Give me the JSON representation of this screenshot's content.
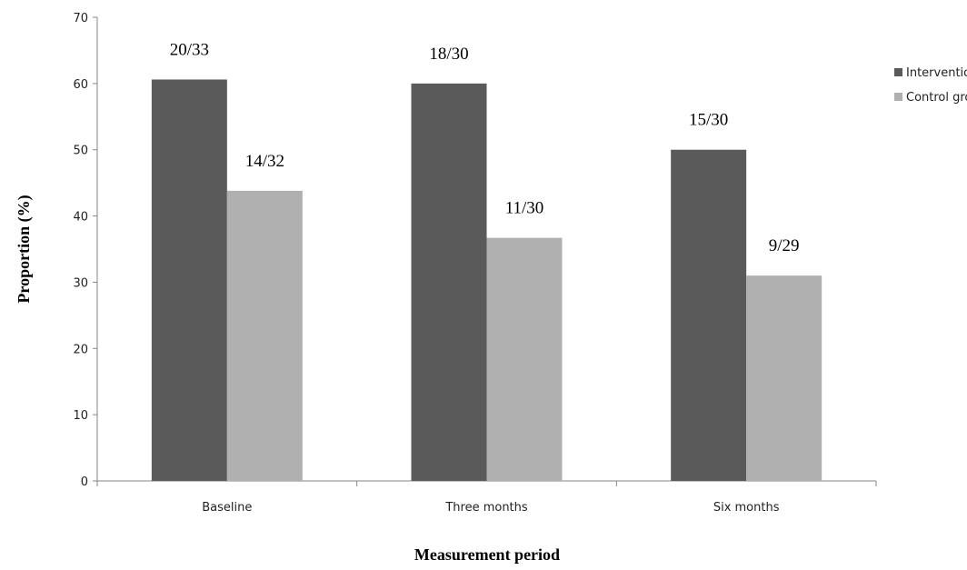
{
  "chart_data": {
    "type": "bar",
    "title": "",
    "xlabel": "Measurement period",
    "ylabel": "Proportion (%)",
    "ylim": [
      0,
      70
    ],
    "yticks": [
      0,
      10,
      20,
      30,
      40,
      50,
      60,
      70
    ],
    "grid": false,
    "legend_position": "right",
    "categories": [
      "Baseline",
      "Three months",
      "Six months"
    ],
    "series": [
      {
        "name": "Intervention group",
        "color": "#5a5a5a",
        "values": [
          60.6,
          60.0,
          50.0
        ],
        "labels": [
          "20/33",
          "18/30",
          "15/30"
        ]
      },
      {
        "name": "Control group",
        "color": "#b0b0b0",
        "values": [
          43.8,
          36.7,
          31.0
        ],
        "labels": [
          "14/32",
          "11/30",
          "9/29"
        ]
      }
    ]
  }
}
